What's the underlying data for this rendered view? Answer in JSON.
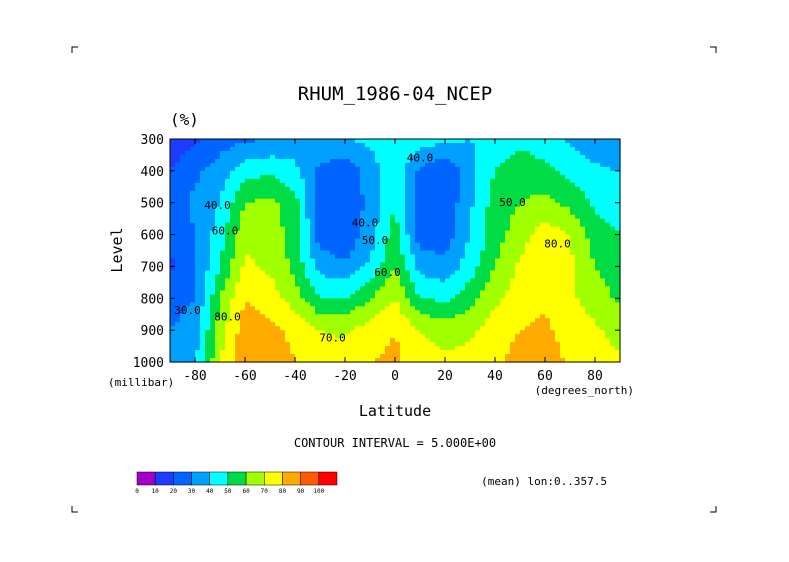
{
  "chart_data": {
    "type": "heatmap",
    "title": "RHUM_1986-04_NCEP",
    "units": "(%)",
    "xlabel": "Latitude",
    "ylabel": "Level",
    "x_units": "(degrees_north)",
    "y_units": "(millibar)",
    "xlim": [
      -90,
      90
    ],
    "ylim": [
      1000,
      300
    ],
    "x_ticks": [
      -80,
      -60,
      -40,
      -20,
      0,
      20,
      40,
      60,
      80
    ],
    "y_ticks": [
      300,
      400,
      500,
      600,
      700,
      800,
      900,
      1000
    ],
    "contour_interval_text": "CONTOUR INTERVAL = 5.000E+00",
    "subtitle_right": "(mean) lon:0..357.5",
    "contour_labels": [
      {
        "text": "40.0",
        "lat": 10,
        "level": 370
      },
      {
        "text": "50.0",
        "lat": 47,
        "level": 510
      },
      {
        "text": "40.0",
        "lat": -12,
        "level": 575
      },
      {
        "text": "50.0",
        "lat": -8,
        "level": 630
      },
      {
        "text": "60.0",
        "lat": -3,
        "level": 730
      },
      {
        "text": "80.0",
        "lat": 65,
        "level": 640
      },
      {
        "text": "40.0",
        "lat": -71,
        "level": 520
      },
      {
        "text": "60.0",
        "lat": -68,
        "level": 600
      },
      {
        "text": "30.0",
        "lat": -83,
        "level": 850
      },
      {
        "text": "80.0",
        "lat": -67,
        "level": 870
      },
      {
        "text": "70.0",
        "lat": -25,
        "level": 935
      }
    ],
    "color_scale": {
      "levels": [
        0,
        10,
        20,
        30,
        40,
        50,
        60,
        70,
        80,
        90,
        100
      ],
      "colors": [
        "#a000c8",
        "#1e3cff",
        "#0064ff",
        "#00a0ff",
        "#00ffff",
        "#00dc46",
        "#a0ff00",
        "#ffff00",
        "#ffaa00",
        "#ff5a00",
        "#ff0000"
      ]
    },
    "field": {
      "lats": [
        -90,
        -80,
        -70,
        -60,
        -50,
        -40,
        -30,
        -20,
        -10,
        0,
        10,
        20,
        30,
        40,
        50,
        60,
        70,
        80,
        90
      ],
      "levels": [
        300,
        400,
        500,
        600,
        700,
        800,
        900,
        1000
      ],
      "values": [
        [
          12,
          18,
          25,
          28,
          30,
          35,
          38,
          40,
          42,
          44,
          46,
          42,
          40,
          44,
          48,
          45,
          38,
          33,
          30
        ],
        [
          20,
          28,
          35,
          46,
          48,
          42,
          28,
          22,
          35,
          48,
          28,
          22,
          36,
          50,
          55,
          52,
          47,
          42,
          40
        ],
        [
          25,
          32,
          40,
          60,
          62,
          55,
          24,
          22,
          33,
          50,
          24,
          22,
          38,
          55,
          60,
          63,
          57,
          48,
          45
        ],
        [
          22,
          30,
          45,
          68,
          65,
          56,
          25,
          22,
          35,
          55,
          25,
          24,
          40,
          56,
          65,
          75,
          70,
          55,
          50
        ],
        [
          18,
          28,
          50,
          72,
          68,
          57,
          36,
          32,
          42,
          60,
          36,
          33,
          45,
          60,
          72,
          80,
          72,
          60,
          55
        ],
        [
          25,
          30,
          60,
          80,
          75,
          65,
          50,
          50,
          60,
          70,
          50,
          48,
          56,
          68,
          75,
          78,
          72,
          65,
          58
        ],
        [
          30,
          35,
          65,
          86,
          82,
          78,
          70,
          68,
          75,
          80,
          70,
          65,
          68,
          75,
          80,
          82,
          75,
          72,
          65
        ],
        [
          32,
          38,
          70,
          88,
          84,
          80,
          76,
          76,
          80,
          82,
          76,
          72,
          74,
          78,
          84,
          86,
          78,
          75,
          72
        ]
      ]
    }
  }
}
